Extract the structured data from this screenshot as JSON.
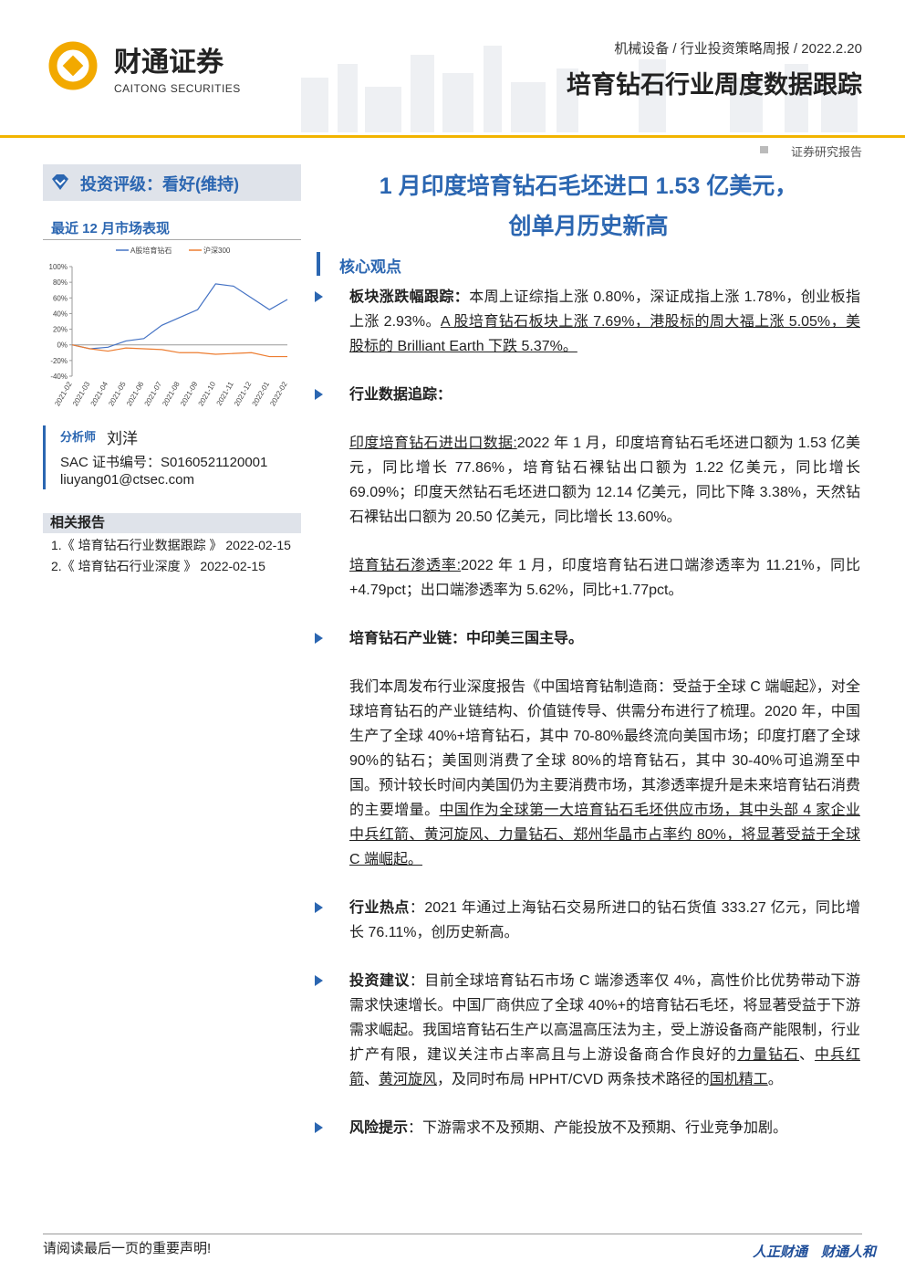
{
  "header": {
    "logo_cn": "财通证券",
    "logo_en": "CAITONG SECURITIES",
    "breadcrumb": "机械设备 / 行业投资策略周报 / 2022.2.20",
    "title": "培育钻石行业周度数据跟踪",
    "report_type": "证券研究报告"
  },
  "sidebar": {
    "rating": "投资评级：看好(维持)",
    "market_title": "最近 12 月市场表现",
    "analyst": {
      "label": "分析师",
      "name": "刘洋",
      "sac": "SAC 证书编号：S0160521120001",
      "email": "liuyang01@ctsec.com"
    },
    "related": {
      "title": "相关报告",
      "items": [
        "1.《 培育钻石行业数据跟踪 》 2022-02-15",
        "2.《 培育钻石行业深度 》 2022-02-15"
      ]
    }
  },
  "chart_data": {
    "type": "line",
    "categories": [
      "2021-02",
      "2021-03",
      "2021-04",
      "2021-05",
      "2021-06",
      "2021-07",
      "2021-08",
      "2021-09",
      "2021-10",
      "2021-11",
      "2021-12",
      "2022-01",
      "2022-02"
    ],
    "series": [
      {
        "name": "A股培育钻石",
        "color": "#4472c4",
        "values": [
          0,
          -5,
          -3,
          5,
          8,
          25,
          35,
          45,
          78,
          75,
          60,
          45,
          58
        ]
      },
      {
        "name": "沪深300",
        "color": "#ed7d31",
        "values": [
          0,
          -5,
          -8,
          -4,
          -5,
          -6,
          -10,
          -10,
          -12,
          -11,
          -10,
          -15,
          -15
        ]
      }
    ],
    "ylim": [
      -40,
      100
    ],
    "yticks": [
      {
        "value": -40,
        "label": "-40%"
      },
      {
        "value": -20,
        "label": "-20%"
      },
      {
        "value": 0,
        "label": "0%"
      },
      {
        "value": 20,
        "label": "20%"
      },
      {
        "value": 40,
        "label": "40%"
      },
      {
        "value": 60,
        "label": "60%"
      },
      {
        "value": 80,
        "label": "80%"
      },
      {
        "value": 100,
        "label": "100%"
      }
    ],
    "legend": "top"
  },
  "main": {
    "title_lines": [
      "1 月印度培育钻石毛坯进口 1.53 亿美元，",
      "创单月历史新高"
    ],
    "section": "核心观点",
    "bullets": [
      {
        "paragraphs": [
          [
            {
              "t": "板块涨跌幅跟踪：",
              "s": "b"
            },
            {
              "t": "本周上证综指上涨 0.80%，深证成指上涨 1.78%，创业板指上涨 2.93%。"
            },
            {
              "t": "A 股培育钻石板块上涨 7.69%，港股标的周大福上涨 5.05%，美股标的 Brilliant Earth 下跌 5.37%。",
              "s": "u"
            }
          ]
        ]
      },
      {
        "paragraphs": [
          [
            {
              "t": "行业数据追踪：",
              "s": "b"
            }
          ],
          [
            {
              "t": "印度培育钻石进出口数据:",
              "s": "u"
            },
            {
              "t": "2022 年 1 月，印度培育钻石毛坯进口额为 1.53 亿美元，同比增长 77.86%，培育钻石裸钻出口额为 1.22 亿美元，同比增长 69.09%；印度天然钻石毛坯进口额为 12.14 亿美元，同比下降 3.38%，天然钻石裸钻出口额为 20.50 亿美元，同比增长 13.60%。"
            }
          ],
          [
            {
              "t": "培育钻石渗透率:",
              "s": "u"
            },
            {
              "t": "2022 年 1 月，印度培育钻石进口端渗透率为 11.21%，同比+4.79pct；出口端渗透率为 5.62%，同比+1.77pct。"
            }
          ]
        ]
      },
      {
        "paragraphs": [
          [
            {
              "t": "培育钻石产业链：中印美三国主导。",
              "s": "b"
            }
          ],
          [
            {
              "t": "我们本周发布行业深度报告《中国培育钻制造商：受益于全球 C 端崛起》，对全球培育钻石的产业链结构、价值链传导、供需分布进行了梳理。2020 年，中国生产了全球 40%+培育钻石，其中 70-80%最终流向美国市场；印度打磨了全球 90%的钻石；美国则消费了全球 80%的培育钻石，其中 30-40%可追溯至中国。预计较长时间内美国仍为主要消费市场，其渗透率提升是未来培育钻石消费的主要增量。"
            },
            {
              "t": "中国作为全球第一大培育钻石毛坯供应市场，其中头部 4 家企业中兵红箭、黄河旋风、力量钻石、郑州华晶市占率约 80%，将显著受益于全球 C 端崛起。",
              "s": "u"
            }
          ]
        ]
      },
      {
        "paragraphs": [
          [
            {
              "t": "行业热点",
              "s": "b"
            },
            {
              "t": "：2021 年通过上海钻石交易所进口的钻石货值 333.27 亿元，同比增长 76.11%，创历史新高。"
            }
          ]
        ]
      },
      {
        "paragraphs": [
          [
            {
              "t": "投资建议",
              "s": "b"
            },
            {
              "t": "：目前全球培育钻石市场 C 端渗透率仅 4%，高性价比优势带动下游需求快速增长。中国厂商供应了全球 40%+的培育钻石毛坯，将显著受益于下游需求崛起。我国培育钻石生产以高温高压法为主，受上游设备商产能限制，行业扩产有限，建议关注市占率高且与上游设备商合作良好的"
            },
            {
              "t": "力量钻石",
              "s": "u"
            },
            {
              "t": "、"
            },
            {
              "t": "中兵红箭",
              "s": "u"
            },
            {
              "t": "、"
            },
            {
              "t": "黄河旋风",
              "s": "u"
            },
            {
              "t": "，及同时布局 HPHT/CVD 两条技术路径的"
            },
            {
              "t": "国机精工",
              "s": "u"
            },
            {
              "t": "。"
            }
          ]
        ]
      },
      {
        "paragraphs": [
          [
            {
              "t": "风险提示",
              "s": "b"
            },
            {
              "t": "：下游需求不及预期、产能投放不及预期、行业竞争加剧。"
            }
          ]
        ]
      }
    ]
  },
  "footer": {
    "notice": "请阅读最后一页的重要声明!",
    "slogan": "人正财通　财通人和"
  }
}
